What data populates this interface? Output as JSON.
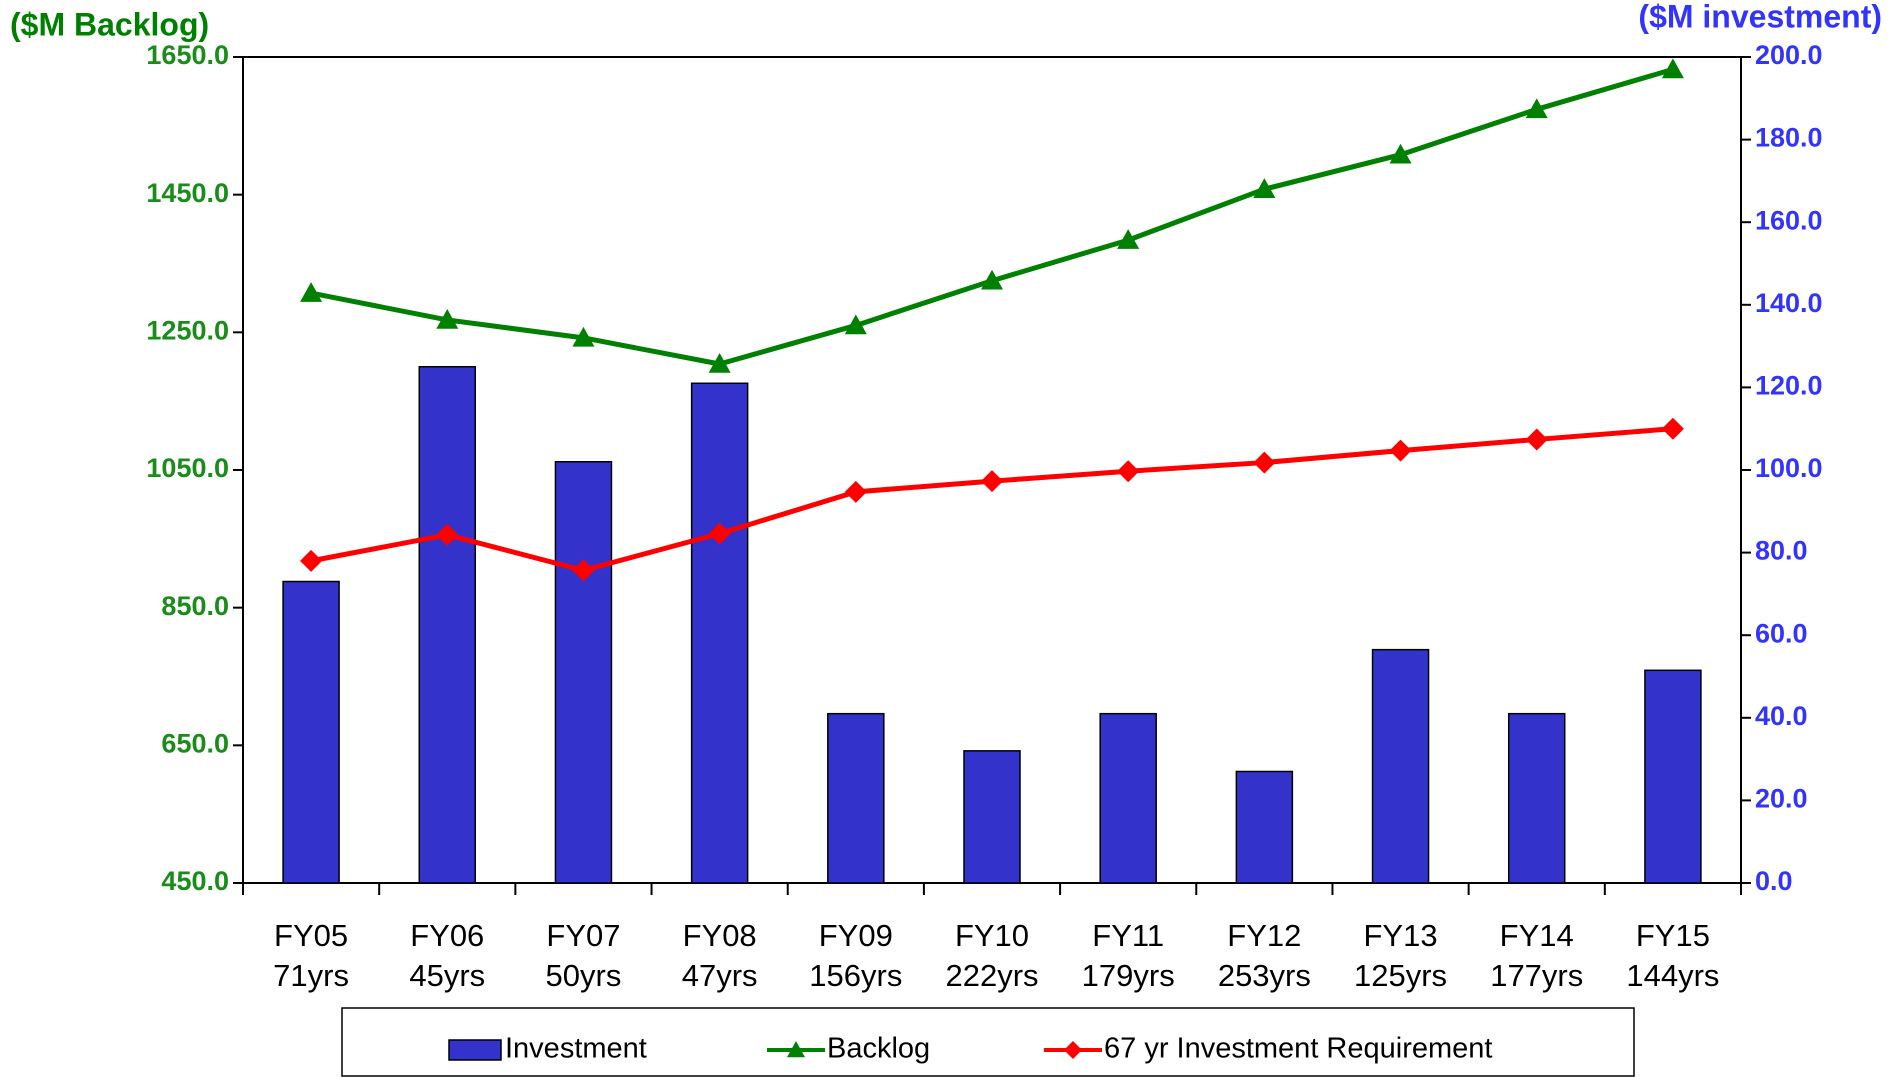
{
  "chart_data": {
    "type": "bar",
    "ylabel": "($M Backlog)",
    "y2label": "($M investment)",
    "categories": [
      [
        "FY05",
        "71yrs"
      ],
      [
        "FY06",
        "45yrs"
      ],
      [
        "FY07",
        "50yrs"
      ],
      [
        "FY08",
        "47yrs"
      ],
      [
        "FY09",
        "156yrs"
      ],
      [
        "FY10",
        "222yrs"
      ],
      [
        "FY11",
        "179yrs"
      ],
      [
        "FY12",
        "253yrs"
      ],
      [
        "FY13",
        "125yrs"
      ],
      [
        "FY14",
        "177yrs"
      ],
      [
        "FY15",
        "144yrs"
      ]
    ],
    "ylim": [
      450,
      1650
    ],
    "yticks": [
      {
        "value": 450,
        "label": "450.0"
      },
      {
        "value": 650,
        "label": "650.0"
      },
      {
        "value": 850,
        "label": "850.0"
      },
      {
        "value": 1050,
        "label": "1050.0"
      },
      {
        "value": 1250,
        "label": "1250.0"
      },
      {
        "value": 1450,
        "label": "1450.0"
      },
      {
        "value": 1650,
        "label": "1650.0"
      }
    ],
    "y2lim": [
      0,
      200
    ],
    "y2ticks": [
      {
        "value": 0,
        "label": "0.0"
      },
      {
        "value": 20,
        "label": "20.0"
      },
      {
        "value": 40,
        "label": "40.0"
      },
      {
        "value": 60,
        "label": "60.0"
      },
      {
        "value": 80,
        "label": "80.0"
      },
      {
        "value": 100,
        "label": "100.0"
      },
      {
        "value": 120,
        "label": "120.0"
      },
      {
        "value": 140,
        "label": "140.0"
      },
      {
        "value": 160,
        "label": "160.0"
      },
      {
        "value": 180,
        "label": "180.0"
      },
      {
        "value": 200,
        "label": "200.0"
      }
    ],
    "legend": "bottom",
    "series": [
      {
        "name": "Investment",
        "type": "bar",
        "axis": "y2",
        "color": "#3333cc",
        "values": [
          73,
          125,
          102,
          121,
          41,
          32,
          41,
          27,
          56.5,
          41,
          51.5
        ]
      },
      {
        "name": "Backlog",
        "type": "line",
        "axis": "y",
        "color": "#008000",
        "marker": "triangle",
        "values": [
          1307,
          1268,
          1242,
          1204,
          1260,
          1325,
          1384,
          1458,
          1508,
          1574,
          1632
        ]
      },
      {
        "name": "67 yr Investment Requirement",
        "type": "line",
        "axis": "y2",
        "color": "#ff0000",
        "marker": "diamond",
        "values": [
          78,
          84.3,
          75.7,
          84.6,
          94.7,
          97.3,
          99.7,
          101.8,
          104.7,
          107.4,
          110
        ]
      }
    ]
  }
}
